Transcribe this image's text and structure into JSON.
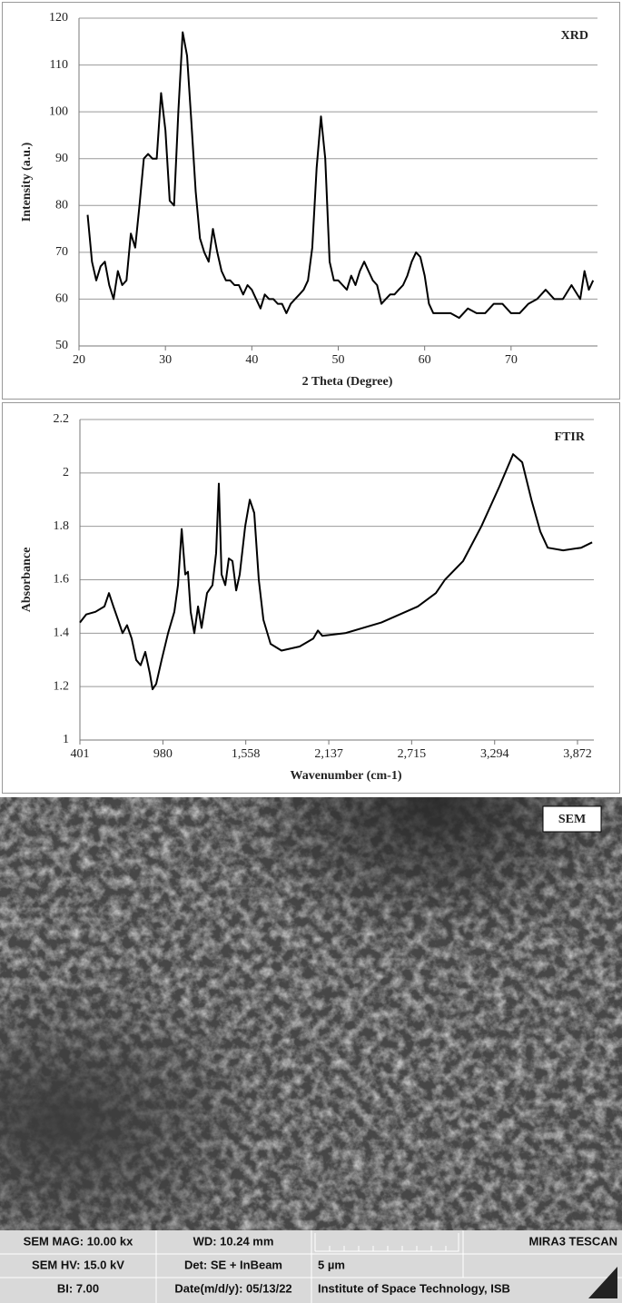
{
  "chart_data": [
    {
      "type": "line",
      "annotation": "XRD",
      "x_label": "2 Theta (Degree)",
      "y_label": "Intensity (a.u.)",
      "color": "#000000",
      "grid": true,
      "xlim": [
        20,
        80
      ],
      "xticks": [
        20,
        30,
        40,
        50,
        60,
        70
      ],
      "ylim": [
        50,
        120
      ],
      "yticks": [
        50,
        60,
        70,
        80,
        90,
        100,
        110,
        120
      ],
      "x": [
        21,
        21.5,
        22,
        22.5,
        23,
        23.5,
        24,
        24.5,
        25,
        25.5,
        26,
        26.5,
        27,
        27.5,
        28,
        28.5,
        29,
        29.5,
        30,
        30.5,
        31,
        31.5,
        32,
        32.5,
        33,
        33.5,
        34,
        34.5,
        35,
        35.5,
        36,
        36.5,
        37,
        37.5,
        38,
        38.5,
        39,
        39.5,
        40,
        40.5,
        41,
        41.5,
        42,
        42.5,
        43,
        43.5,
        44,
        44.5,
        45,
        45.5,
        46,
        46.5,
        47,
        47.5,
        48,
        48.5,
        49,
        49.5,
        50,
        50.5,
        51,
        51.5,
        52,
        52.5,
        53,
        53.5,
        54,
        54.5,
        55,
        55.5,
        56,
        56.5,
        57,
        57.5,
        58,
        58.5,
        59,
        59.5,
        60,
        60.5,
        61,
        61.5,
        62,
        63,
        64,
        65,
        66,
        67,
        68,
        69,
        70,
        71,
        72,
        73,
        74,
        75,
        76,
        77,
        78,
        78.5,
        79,
        79.5
      ],
      "values": [
        78,
        68,
        64,
        67,
        68,
        63,
        60,
        66,
        63,
        64,
        74,
        71,
        80,
        90,
        91,
        90,
        90,
        104,
        96,
        81,
        80,
        100,
        117,
        112,
        98,
        83,
        73,
        70,
        68,
        75,
        70,
        66,
        64,
        64,
        63,
        63,
        61,
        63,
        62,
        60,
        58,
        61,
        60,
        60,
        59,
        59,
        57,
        59,
        60,
        61,
        62,
        64,
        71,
        88,
        99,
        90,
        68,
        64,
        64,
        63,
        62,
        65,
        63,
        66,
        68,
        66,
        64,
        63,
        59,
        60,
        61,
        61,
        62,
        63,
        65,
        68,
        70,
        69,
        65,
        59,
        57,
        57,
        57,
        57,
        56,
        58,
        57,
        57,
        59,
        59,
        57,
        57,
        59,
        60,
        62,
        60,
        60,
        63,
        60,
        66,
        62,
        64
      ]
    },
    {
      "type": "line",
      "annotation": "FTIR",
      "x_label": "Wavenumber  (cm-1)",
      "y_label": "Absorbance",
      "color": "#000000",
      "grid": true,
      "xlim": [
        401,
        3986
      ],
      "xticks": [
        401,
        980,
        {
          "value": 1558,
          "label": "1,558"
        },
        {
          "value": 2137,
          "label": "2,137"
        },
        {
          "value": 2715,
          "label": "2,715"
        },
        {
          "value": 3294,
          "label": "3,294"
        },
        {
          "value": 3872,
          "label": "3,872"
        }
      ],
      "ylim": [
        1,
        2.2
      ],
      "yticks": [
        1,
        1.2,
        1.4,
        1.6,
        1.8,
        2,
        2.2
      ],
      "x": [
        401,
        445,
        509,
        572,
        604,
        635,
        667,
        699,
        730,
        762,
        794,
        825,
        857,
        889,
        908,
        933,
        971,
        1016,
        1060,
        1085,
        1111,
        1136,
        1155,
        1174,
        1199,
        1225,
        1250,
        1288,
        1326,
        1351,
        1370,
        1389,
        1415,
        1440,
        1465,
        1491,
        1516,
        1554,
        1586,
        1617,
        1649,
        1681,
        1731,
        1807,
        1934,
        2029,
        2061,
        2092,
        2251,
        2504,
        2758,
        2884,
        2947,
        3074,
        3201,
        3328,
        3423,
        3486,
        3550,
        3613,
        3664,
        3772,
        3898,
        3974
      ],
      "values": [
        1.44,
        1.47,
        1.48,
        1.5,
        1.55,
        1.5,
        1.45,
        1.4,
        1.43,
        1.38,
        1.3,
        1.28,
        1.33,
        1.25,
        1.19,
        1.21,
        1.3,
        1.4,
        1.48,
        1.58,
        1.79,
        1.62,
        1.63,
        1.48,
        1.4,
        1.5,
        1.42,
        1.55,
        1.58,
        1.7,
        1.96,
        1.62,
        1.58,
        1.68,
        1.67,
        1.56,
        1.62,
        1.8,
        1.9,
        1.85,
        1.6,
        1.45,
        1.36,
        1.335,
        1.35,
        1.38,
        1.41,
        1.39,
        1.4,
        1.44,
        1.5,
        1.55,
        1.6,
        1.67,
        1.8,
        1.95,
        2.07,
        2.04,
        1.9,
        1.78,
        1.72,
        1.71,
        1.72,
        1.74
      ]
    }
  ],
  "sem": {
    "label": "SEM",
    "info": [
      [
        "SEM MAG: 10.00 kx",
        "WD: 10.24 mm",
        "MIRA3 TESCAN"
      ],
      [
        "SEM HV: 15.0 kV",
        "Det: SE + InBeam",
        "5 µm"
      ],
      [
        "BI: 7.00",
        "Date(m/d/y): 05/13/22",
        "Institute of Space Technology, ISB"
      ]
    ]
  }
}
